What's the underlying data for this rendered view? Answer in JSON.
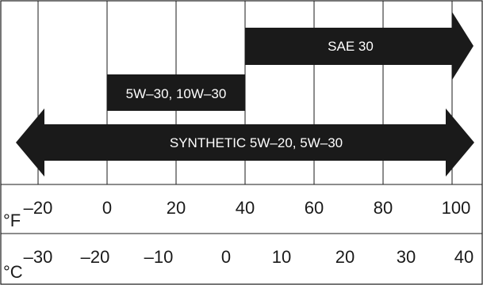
{
  "bands": [
    {
      "label": "SAE 30",
      "direction": "right"
    },
    {
      "label": "5W–30, 10W–30",
      "direction": "none"
    },
    {
      "label": "SYNTHETIC 5W–20, 5W–30",
      "direction": "both"
    }
  ],
  "fahrenheit_scale": {
    "unit": "°F",
    "ticks": [
      "–20",
      "0",
      "20",
      "40",
      "60",
      "80",
      "100"
    ]
  },
  "celsius_scale": {
    "unit": "°C",
    "ticks": [
      "–30",
      "–20",
      "–10",
      "0",
      "10",
      "20",
      "30",
      "40"
    ]
  },
  "colors": {
    "band_fill": "#1a1a1a",
    "band_text": "#ffffff",
    "line": "#1a1a1a",
    "background": "#ffffff"
  }
}
